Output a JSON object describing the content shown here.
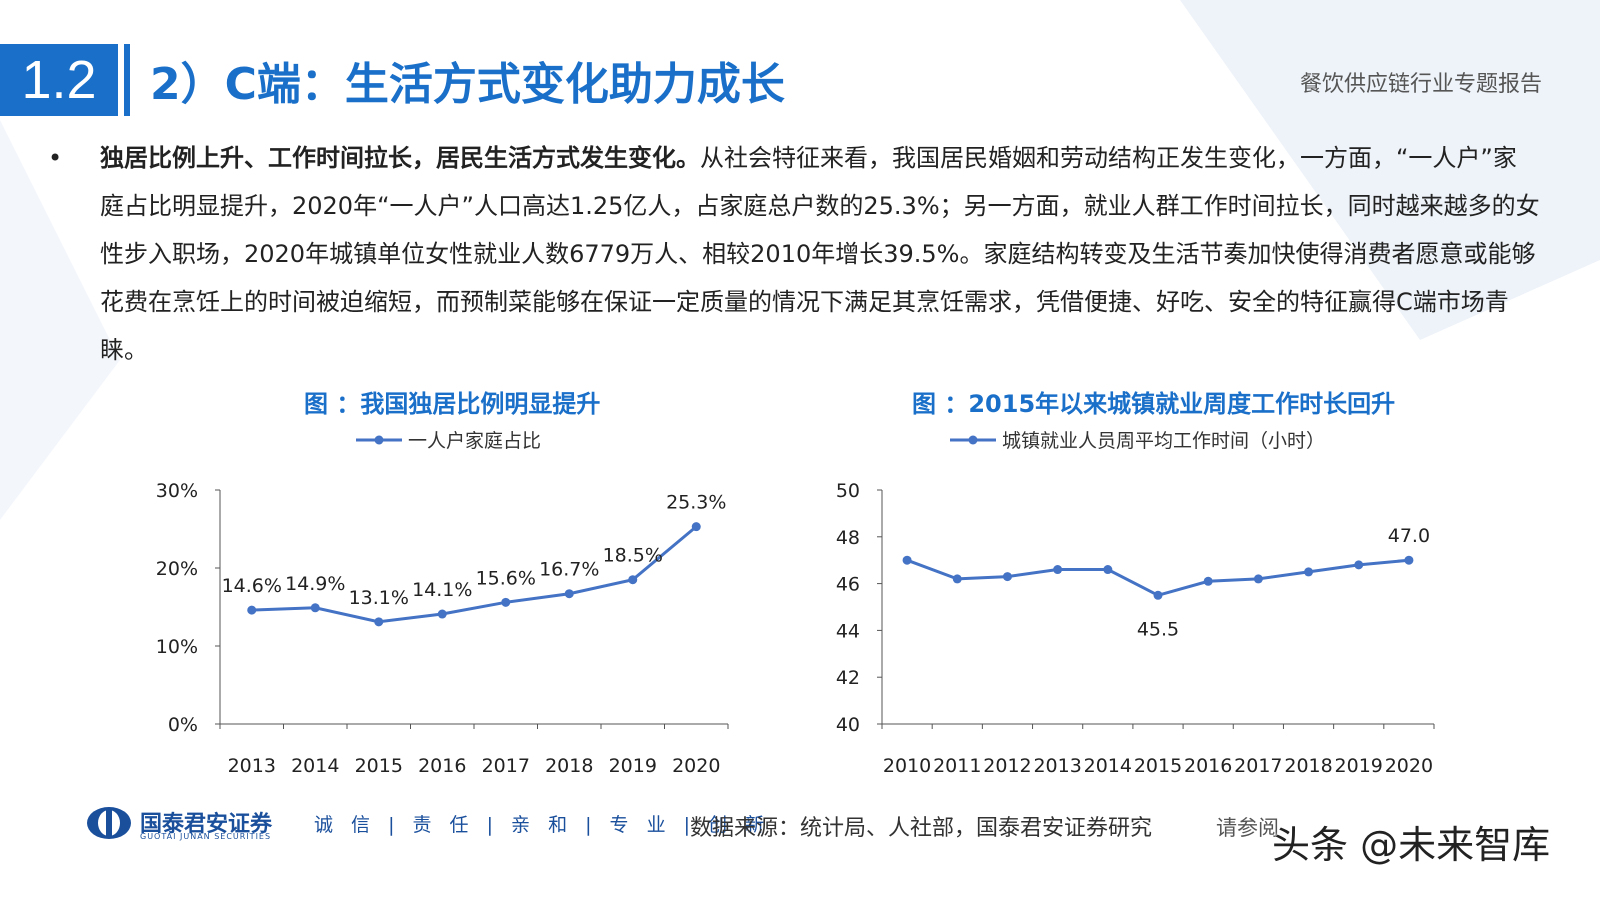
{
  "header": {
    "section_number": "1.2",
    "title": "2）C端：生活方式变化助力成长",
    "report_name": "餐饮供应链行业专题报告"
  },
  "body": {
    "bullet": "•",
    "lead": "独居比例上升、工作时间拉长，居民生活方式发生变化。",
    "text": "从社会特征来看，我国居民婚姻和劳动结构正发生变化，一方面，“一人户”家庭占比明显提升，2020年“一人户”人口高达1.25亿人，占家庭总户数的25.3%；另一方面，就业人群工作时间拉长，同时越来越多的女性步入职场，2020年城镇单位女性就业人数6779万人、相较2010年增长39.5%。家庭结构转变及生活节奏加快使得消费者愿意或能够花费在烹饪上的时间被迫缩短，而预制菜能够在保证一定质量的情况下满足其烹饪需求，凭借便捷、好吃、安全的特征赢得C端市场青睐。"
  },
  "charts": {
    "left_title": "图 ：我国独居比例明显提升",
    "right_title": "图 ：2015年以来城镇就业周度工作时长回升"
  },
  "chart_data": [
    {
      "type": "line",
      "title": "图 ：我国独居比例明显提升",
      "x": [
        "2013",
        "2014",
        "2015",
        "2016",
        "2017",
        "2018",
        "2019",
        "2020"
      ],
      "series": [
        {
          "name": "一人户家庭占比",
          "values": [
            14.6,
            14.9,
            13.1,
            14.1,
            15.6,
            16.7,
            18.5,
            25.3
          ],
          "labels": [
            "14.6%",
            "14.9%",
            "13.1%",
            "14.1%",
            "15.6%",
            "16.7%",
            "18.5%",
            "25.3%"
          ]
        }
      ],
      "ylim": [
        0,
        30
      ],
      "yticks": [
        "0%",
        "10%",
        "20%",
        "30%"
      ],
      "ytick_values": [
        0,
        10,
        20,
        30
      ],
      "legend": "top-left",
      "color": "#4472c4"
    },
    {
      "type": "line",
      "title": "图 ：2015年以来城镇就业周度工作时长回升",
      "x": [
        "2010",
        "2011",
        "2012",
        "2013",
        "2014",
        "2015",
        "2016",
        "2017",
        "2018",
        "2019",
        "2020"
      ],
      "series": [
        {
          "name": "城镇就业人员周平均工作时间（小时）",
          "values": [
            47.0,
            46.2,
            46.3,
            46.6,
            46.6,
            45.5,
            46.1,
            46.2,
            46.5,
            46.8,
            47.0
          ],
          "labels": [
            "",
            "",
            "",
            "",
            "",
            "45.5",
            "",
            "",
            "",
            "",
            "47.0"
          ]
        }
      ],
      "ylim": [
        40,
        50
      ],
      "yticks": [
        "40",
        "42",
        "44",
        "46",
        "48",
        "50"
      ],
      "ytick_values": [
        40,
        42,
        44,
        46,
        48,
        50
      ],
      "legend": "top-left",
      "color": "#4472c4"
    }
  ],
  "footer": {
    "company": "国泰君安证券",
    "company_en": "GUOTAI JUNAN SECURITIES",
    "motto": "诚 信 | 责 任 | 亲 和 | 专 业 | 创 新",
    "source": "数据来源：统计局、人社部，国泰君安证券研究",
    "disclaimer": "请参阅",
    "watermark": "头条 @未来智库"
  }
}
